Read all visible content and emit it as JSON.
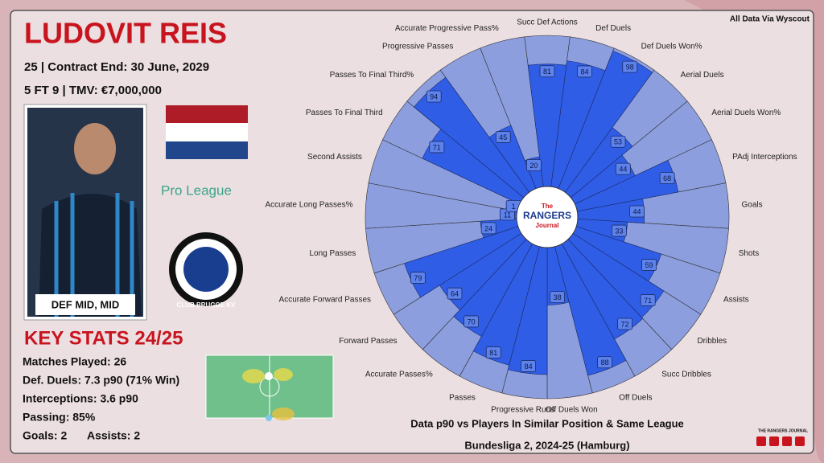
{
  "header": {
    "title": "LUDOVIT REIS",
    "line1": "25 | Contract End: 30 June, 2029",
    "line2": "5 FT 9 | TMV: €7,000,000",
    "position": "DEF MID, MID",
    "league": "Pro League",
    "club": "CLUB BRUGGE KV",
    "source": "All Data Via Wyscout"
  },
  "key_stats": {
    "title": "KEY STATS 24/25",
    "items": [
      "Matches Played: 26",
      "Def. Duels: 7.3 p90 (71% Win)",
      "Interceptions: 3.6 p90",
      "Passing: 85%",
      "Goals: 2",
      "Assists: 2"
    ]
  },
  "brand": {
    "logo": [
      "The",
      "RANGERS",
      "Journal"
    ],
    "footer": "THE RANGERS JOURNAL"
  },
  "chart_data": {
    "type": "polar-bar",
    "title": "Data p90 vs Players In Similar Position & Same League",
    "subtitle": "Bundesliga 2, 2024-25 (Hamburg)",
    "categories": [
      "Succ Def Actions",
      "Def Duels",
      "Def Duels Won%",
      "Aerial Duels",
      "Aerial Duels Won%",
      "PAdj Interceptions",
      "Goals",
      "Shots",
      "Assists",
      "Dribbles",
      "Succ Dribbles",
      "Off Duels",
      "Off Duels Won",
      "Progressive Runs",
      "Passes",
      "Accurate Passes%",
      "Forward Passes",
      "Accurate Forward Passes",
      "Long Passes",
      "Accurate Long Passes%",
      "Second Assists",
      "Passes To Final Third",
      "Passes To Final Third%",
      "Progressive Passes",
      "Accurate Progressive Pass%"
    ],
    "values": [
      81,
      84,
      98,
      53,
      44,
      68,
      44,
      33,
      59,
      71,
      72,
      88,
      38,
      84,
      81,
      70,
      64,
      79,
      24,
      11,
      1,
      71,
      94,
      45,
      20
    ],
    "rlim": [
      0,
      100
    ],
    "color": "#2f5de6",
    "background_color": "#8c9ede"
  }
}
